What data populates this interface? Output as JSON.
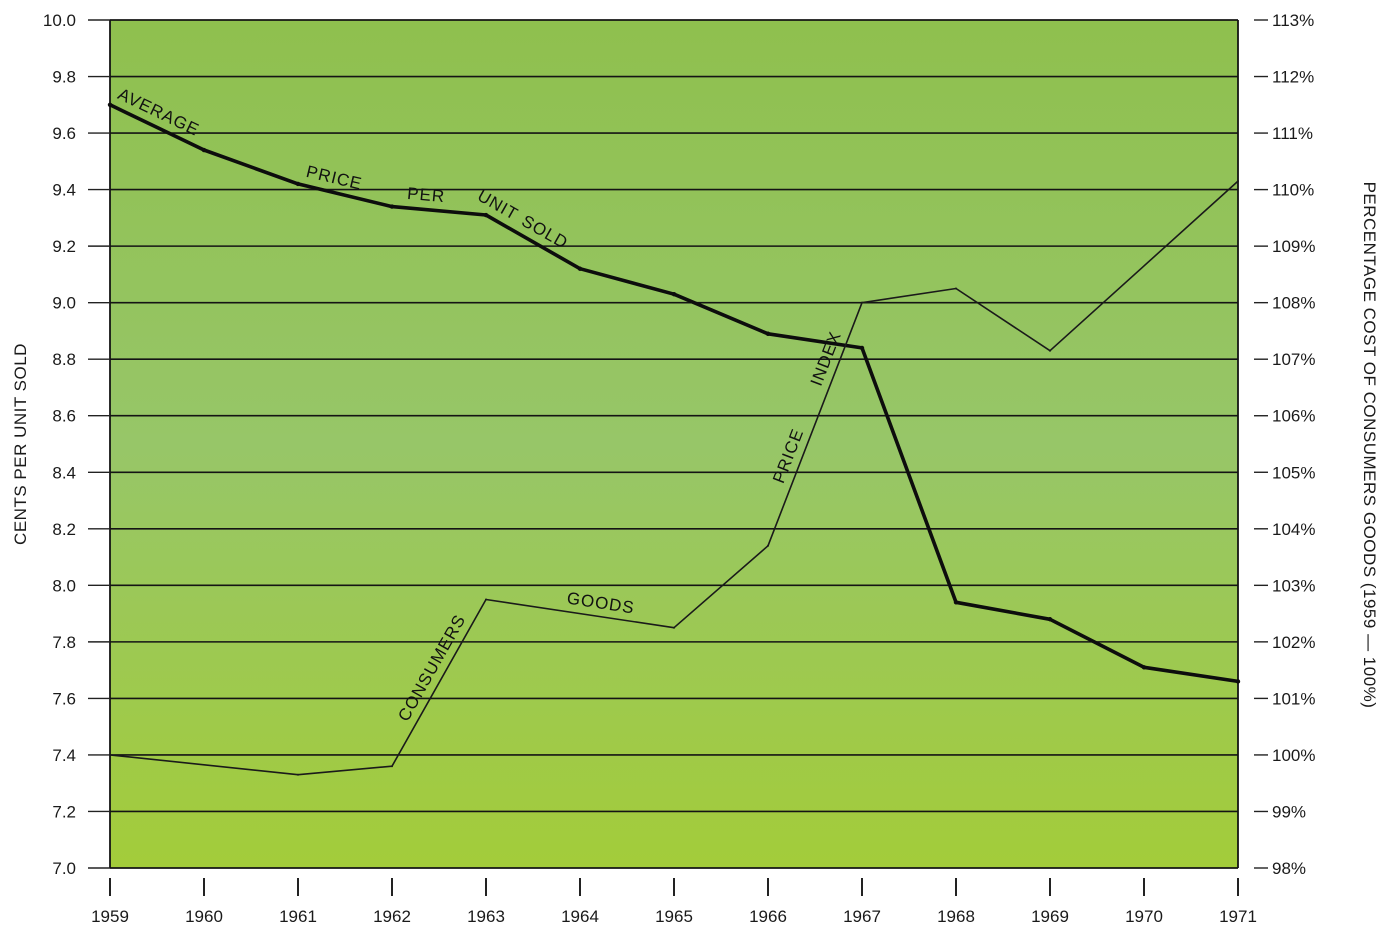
{
  "chart_data": {
    "type": "line",
    "title": "",
    "xlabel": "",
    "ylabel": "CENTS PER UNIT SOLD",
    "y2label": "PERCENTAGE COST OF CONSUMERS GOODS (1959 — 100%)",
    "categories": [
      "1959",
      "1960",
      "1961",
      "1962",
      "1963",
      "1964",
      "1965",
      "1966",
      "1967",
      "1968",
      "1969",
      "1970",
      "1971"
    ],
    "ylim": [
      7.0,
      10.0
    ],
    "y2lim": [
      98,
      113
    ],
    "yticks": [
      "7.0",
      "7.2",
      "7.4",
      "7.6",
      "7.8",
      "8.0",
      "8.2",
      "8.4",
      "8.6",
      "8.8",
      "9.0",
      "9.2",
      "9.4",
      "9.6",
      "9.8",
      "10.0"
    ],
    "y2ticks": [
      "98%",
      "99%",
      "100%",
      "101%",
      "102%",
      "103%",
      "104%",
      "105%",
      "106%",
      "107%",
      "108%",
      "109%",
      "110%",
      "111%",
      "112%",
      "113%"
    ],
    "grid": true,
    "background": "#93c35a",
    "series": [
      {
        "name": "AVERAGE PRICE PER UNIT SOLD",
        "axis": "left",
        "label_words": [
          "AVERAGE",
          "PRICE",
          "PER",
          "UNIT",
          "SOLD"
        ],
        "x": [
          1959,
          1960,
          1961,
          1962,
          1963,
          1964,
          1965,
          1966,
          1967,
          1968,
          1969,
          1970,
          1971
        ],
        "values": [
          9.7,
          9.54,
          9.42,
          9.34,
          9.31,
          9.12,
          9.03,
          8.89,
          8.84,
          7.94,
          7.88,
          7.71,
          7.66
        ],
        "color": "#0d0d0d"
      },
      {
        "name": "CONSUMERS GOODS PRICE INDEX",
        "axis": "right",
        "label_words": [
          "CONSUMERS",
          "GOODS",
          "PRICE",
          "INDEX"
        ],
        "x": [
          1959,
          1961,
          1962,
          1963,
          1965,
          1966,
          1967,
          1968,
          1969,
          1971
        ],
        "values": [
          100.0,
          99.65,
          99.8,
          102.75,
          102.25,
          103.7,
          108.0,
          108.25,
          107.15,
          110.15
        ],
        "color": "#1a1a1a"
      }
    ]
  }
}
